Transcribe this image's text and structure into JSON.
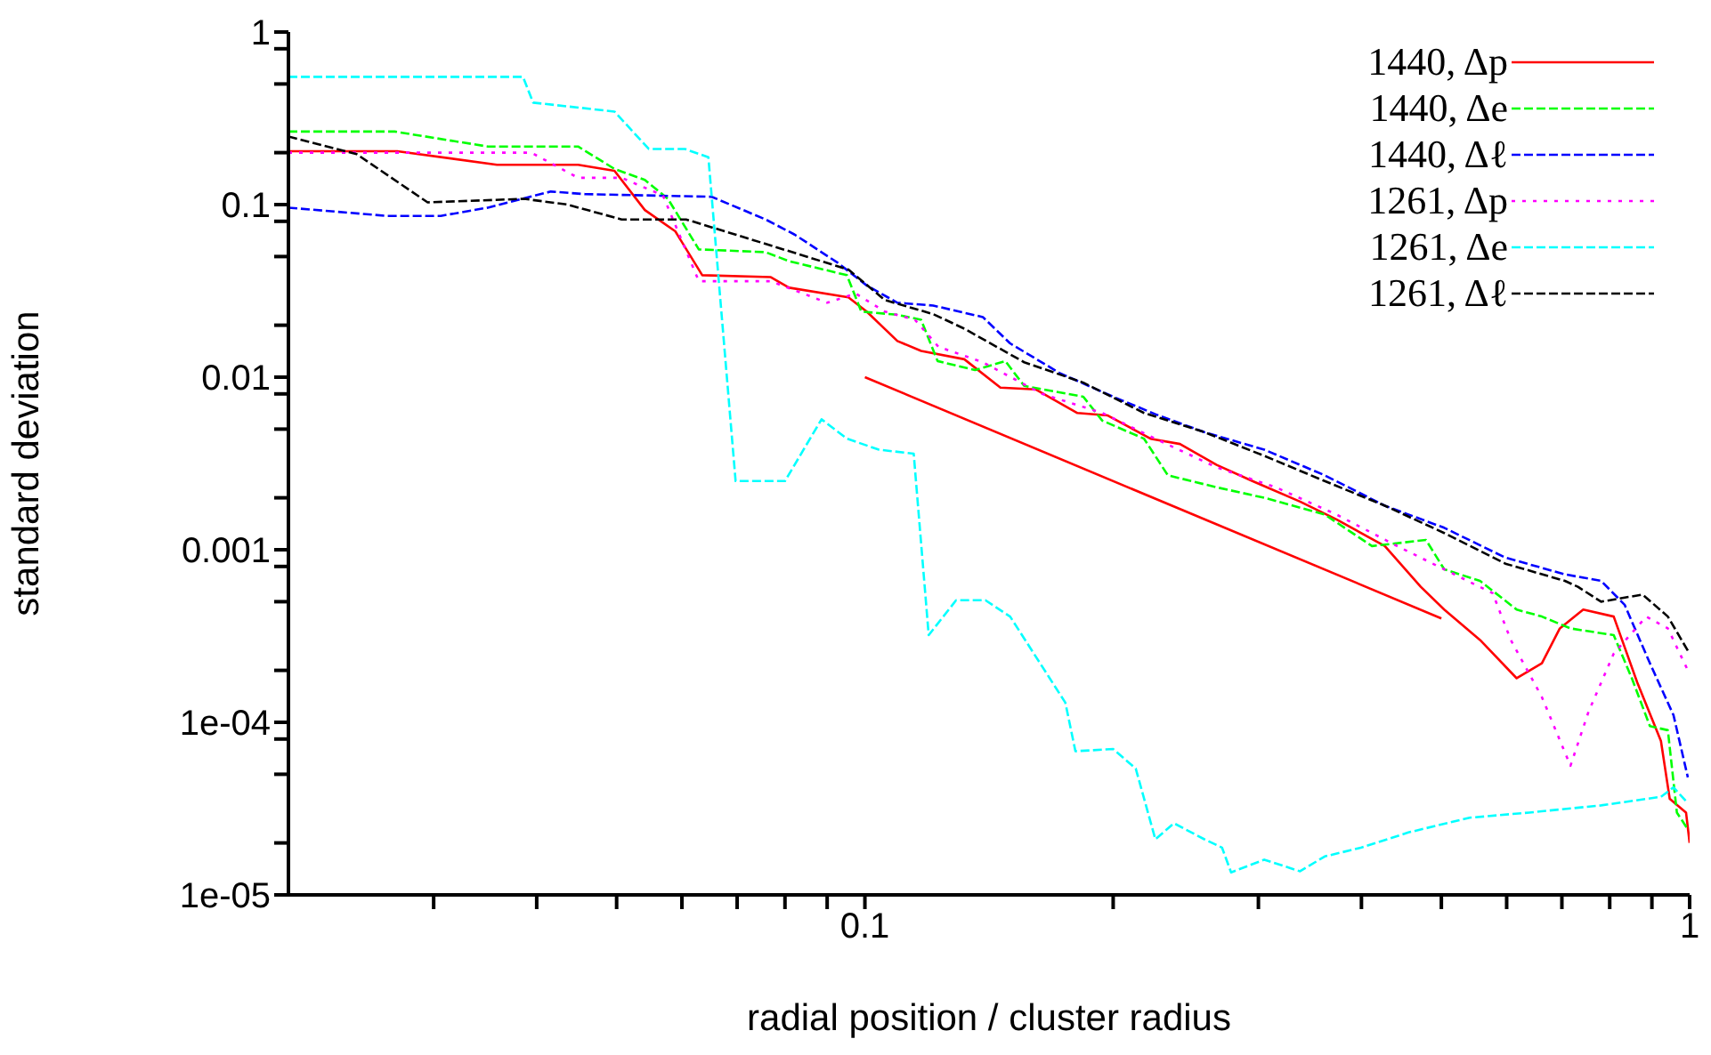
{
  "chart_data": {
    "type": "line",
    "xlabel": "radial position / cluster radius",
    "ylabel": "standard deviation",
    "log": "xy",
    "legend": "top right",
    "marker": "none",
    "xlim": [
      0.02,
      1
    ],
    "ylim": [
      1e-05,
      1
    ],
    "xticks": [
      {
        "value": 0.03,
        "label": null
      },
      {
        "value": 0.04,
        "label": null
      },
      {
        "value": 0.05,
        "label": null
      },
      {
        "value": 0.06,
        "label": null
      },
      {
        "value": 0.07,
        "label": null
      },
      {
        "value": 0.08,
        "label": null
      },
      {
        "value": 0.09,
        "label": null
      },
      0.1,
      {
        "value": 0.2,
        "label": null
      },
      {
        "value": 0.3,
        "label": null
      },
      {
        "value": 0.4,
        "label": null
      },
      {
        "value": 0.5,
        "label": null
      },
      {
        "value": 0.6,
        "label": null
      },
      {
        "value": 0.7,
        "label": null
      },
      {
        "value": 0.8,
        "label": null
      },
      {
        "value": 0.9,
        "label": null
      },
      1
    ],
    "yticks": [
      {
        "value": 1e-05,
        "label": "1e-05"
      },
      {
        "value": 2e-05,
        "label": null
      },
      {
        "value": 5e-05,
        "label": null
      },
      {
        "value": 8e-05,
        "label": null
      },
      {
        "value": 0.0001,
        "label": "1e-04"
      },
      {
        "value": 0.0002,
        "label": null
      },
      {
        "value": 0.0005,
        "label": null
      },
      {
        "value": 0.0008,
        "label": null
      },
      0.001,
      {
        "value": 0.002,
        "label": null
      },
      {
        "value": 0.005,
        "label": null
      },
      {
        "value": 0.008,
        "label": null
      },
      0.01,
      {
        "value": 0.02,
        "label": null
      },
      {
        "value": 0.05,
        "label": null
      },
      {
        "value": 0.08,
        "label": null
      },
      0.1,
      {
        "value": 0.2,
        "label": null
      },
      {
        "value": 0.5,
        "label": null
      },
      {
        "value": 0.8,
        "label": null
      },
      1
    ],
    "series": [
      {
        "name": "1440, Δp",
        "color": "#ff0000",
        "line_style": "solid",
        "x": [
          0.02,
          0.0271,
          0.0358,
          0.0449,
          0.0497,
          0.0541,
          0.0589,
          0.0635,
          0.0769,
          0.0809,
          0.0955,
          0.1005,
          0.1095,
          0.117,
          0.132,
          0.146,
          0.161,
          0.181,
          0.197,
          0.222,
          0.241,
          0.267,
          0.295,
          0.337,
          0.373,
          0.427,
          0.472,
          0.504,
          0.557,
          0.617,
          0.662,
          0.696,
          0.743,
          0.809,
          0.864,
          0.923,
          0.946,
          0.99,
          1
        ],
        "values": [
          0.204,
          0.204,
          0.17,
          0.17,
          0.157,
          0.093,
          0.07,
          0.039,
          0.038,
          0.033,
          0.029,
          0.024,
          0.0162,
          0.0142,
          0.0127,
          0.0087,
          0.0085,
          0.0062,
          0.006,
          0.0044,
          0.0041,
          0.0031,
          0.0025,
          0.0019,
          0.0015,
          0.00105,
          0.00061,
          0.00045,
          0.0003,
          0.00018,
          0.00022,
          0.00035,
          0.00045,
          0.00041,
          0.00017,
          7.8e-05,
          3.6e-05,
          3e-05,
          2e-05
        ]
      },
      {
        "name": "1440, Δe",
        "color": "#00ff00",
        "line_style": "dashed",
        "x": [
          0.02,
          0.0269,
          0.0349,
          0.0449,
          0.0497,
          0.0541,
          0.0577,
          0.0629,
          0.0758,
          0.0809,
          0.0951,
          0.099,
          0.1095,
          0.117,
          0.1225,
          0.136,
          0.148,
          0.156,
          0.184,
          0.194,
          0.218,
          0.233,
          0.267,
          0.305,
          0.361,
          0.412,
          0.479,
          0.504,
          0.557,
          0.617,
          0.662,
          0.717,
          0.809,
          0.851,
          0.895,
          0.941,
          0.965,
          0.995
        ],
        "values": [
          0.265,
          0.265,
          0.217,
          0.217,
          0.161,
          0.139,
          0.108,
          0.055,
          0.053,
          0.047,
          0.039,
          0.024,
          0.023,
          0.0215,
          0.0124,
          0.011,
          0.0124,
          0.0089,
          0.0077,
          0.0056,
          0.0044,
          0.0027,
          0.0023,
          0.002,
          0.0016,
          0.00105,
          0.00114,
          0.00077,
          0.00066,
          0.00045,
          0.00041,
          0.00035,
          0.00032,
          0.00018,
          9.5e-05,
          9e-05,
          3e-05,
          2.4e-05
        ]
      },
      {
        "name": "1440, Δℓ",
        "color": "#0000ff",
        "line_style": "dashed",
        "x": [
          0.02,
          0.0263,
          0.0306,
          0.0349,
          0.0416,
          0.0458,
          0.0652,
          0.0758,
          0.0822,
          0.0927,
          0.1005,
          0.1095,
          0.121,
          0.139,
          0.15,
          0.172,
          0.2,
          0.225,
          0.258,
          0.305,
          0.361,
          0.427,
          0.504,
          0.598,
          0.706,
          0.781,
          0.834,
          0.895,
          0.956,
          0.995
        ],
        "values": [
          0.096,
          0.086,
          0.086,
          0.096,
          0.119,
          0.115,
          0.111,
          0.082,
          0.067,
          0.046,
          0.034,
          0.027,
          0.026,
          0.0223,
          0.0157,
          0.0106,
          0.0077,
          0.0061,
          0.0048,
          0.0038,
          0.0027,
          0.0018,
          0.00134,
          0.0009,
          0.00072,
          0.00066,
          0.00048,
          0.00022,
          0.00011,
          4.8e-05
        ]
      },
      {
        "name": "1261, Δp",
        "color": "#ff00ff",
        "line_style": "dotted",
        "x": [
          0.02,
          0.0394,
          0.0449,
          0.0507,
          0.0569,
          0.0629,
          0.0769,
          0.09,
          0.0975,
          0.1057,
          0.115,
          0.1228,
          0.139,
          0.164,
          0.194,
          0.225,
          0.267,
          0.315,
          0.373,
          0.442,
          0.504,
          0.577,
          0.607,
          0.662,
          0.717,
          0.754,
          0.809,
          0.886,
          0.941,
          0.995
        ],
        "values": [
          0.2,
          0.2,
          0.143,
          0.143,
          0.113,
          0.036,
          0.036,
          0.027,
          0.0305,
          0.024,
          0.0215,
          0.015,
          0.0122,
          0.008,
          0.0062,
          0.0044,
          0.003,
          0.0023,
          0.0016,
          0.00105,
          0.00077,
          0.00056,
          0.0003,
          0.00014,
          5.6e-05,
          0.000115,
          0.00025,
          0.00041,
          0.00035,
          0.0002
        ]
      },
      {
        "name": "1261, Δe",
        "color": "#00ffff",
        "line_style": "dashed",
        "x": [
          0.02,
          0.0385,
          0.0396,
          0.0497,
          0.0547,
          0.0605,
          0.0646,
          0.0697,
          0.08,
          0.0886,
          0.0951,
          0.104,
          0.1146,
          0.1195,
          0.129,
          0.14,
          0.15,
          0.175,
          0.18,
          0.2,
          0.213,
          0.225,
          0.237,
          0.258,
          0.271,
          0.278,
          0.305,
          0.337,
          0.361,
          0.4,
          0.456,
          0.541,
          0.639,
          0.781,
          0.923,
          0.956,
          0.995
        ],
        "values": [
          0.55,
          0.55,
          0.39,
          0.346,
          0.21,
          0.21,
          0.188,
          0.0025,
          0.0025,
          0.0057,
          0.0044,
          0.0038,
          0.0036,
          0.00032,
          0.00051,
          0.00051,
          0.00041,
          0.00013,
          6.8e-05,
          7e-05,
          5.4e-05,
          2.1e-05,
          2.6e-05,
          2.1e-05,
          1.88e-05,
          1.35e-05,
          1.6e-05,
          1.37e-05,
          1.67e-05,
          1.88e-05,
          2.3e-05,
          2.8e-05,
          3e-05,
          3.3e-05,
          3.7e-05,
          4.2e-05,
          3.4e-05
        ]
      },
      {
        "name": "1261, Δℓ",
        "color": "#000000",
        "line_style": "dashed",
        "x": [
          0.02,
          0.0242,
          0.0295,
          0.0386,
          0.0436,
          0.0507,
          0.0607,
          0.0697,
          0.0838,
          0.0955,
          0.1057,
          0.121,
          0.132,
          0.156,
          0.184,
          0.218,
          0.258,
          0.305,
          0.361,
          0.427,
          0.504,
          0.598,
          0.706,
          0.732,
          0.781,
          0.877,
          0.941,
          0.995
        ],
        "values": [
          0.248,
          0.196,
          0.103,
          0.108,
          0.1,
          0.082,
          0.082,
          0.067,
          0.051,
          0.042,
          0.028,
          0.0232,
          0.0191,
          0.0122,
          0.0093,
          0.0062,
          0.0048,
          0.0035,
          0.0025,
          0.0018,
          0.00125,
          0.00083,
          0.00066,
          0.00061,
          0.0005,
          0.00055,
          0.00041,
          0.00026
        ]
      },
      {
        "color": "#ff0000",
        "line_style": "solid",
        "x": [
          0.1,
          0.5
        ],
        "values": [
          0.01,
          0.0004
        ]
      }
    ]
  }
}
